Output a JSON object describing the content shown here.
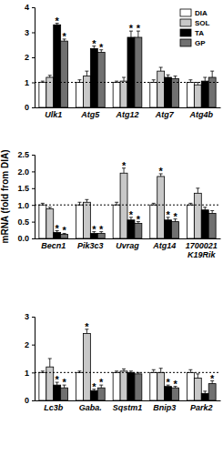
{
  "chart_data": [
    {
      "type": "bar",
      "categories": [
        "Ulk1",
        "Atg5",
        "Atg12",
        "Atg7",
        "Atg4b"
      ],
      "series": [
        {
          "name": "DIA",
          "color": "#ffffff",
          "values": [
            1,
            1,
            1,
            1,
            1
          ],
          "errors": [
            0.05,
            0.1,
            0.05,
            0.1,
            0.1
          ]
        },
        {
          "name": "SOL",
          "color": "#c8c8c8",
          "values": [
            1.2,
            1.25,
            1.05,
            1.45,
            0.9
          ],
          "errors": [
            0.08,
            0.2,
            0.15,
            0.15,
            0.1
          ]
        },
        {
          "name": "TA",
          "color": "#000000",
          "values": [
            3.3,
            2.35,
            2.8,
            1.2,
            1.05
          ],
          "errors": [
            0.06,
            0.1,
            0.25,
            0.1,
            0.15
          ]
        },
        {
          "name": "GP",
          "color": "#707070",
          "values": [
            2.65,
            2.2,
            2.8,
            1.15,
            1.2
          ],
          "errors": [
            0.08,
            0.1,
            0.25,
            0.1,
            0.25
          ]
        }
      ],
      "ylim": [
        0,
        4
      ],
      "yticks": [
        0,
        1,
        2,
        3,
        4
      ],
      "hline": 1,
      "legend": "top-right",
      "annotations": [
        {
          "text": "*",
          "category": 0,
          "series": 2
        },
        {
          "text": "*",
          "category": 0,
          "series": 3
        },
        {
          "text": "*",
          "category": 1,
          "series": 2
        },
        {
          "text": "*",
          "category": 1,
          "series": 3
        },
        {
          "text": "*",
          "category": 2,
          "series": 2
        },
        {
          "text": "*",
          "category": 2,
          "series": 3
        }
      ]
    },
    {
      "type": "bar",
      "y_label": "mRNA (fold from DIA)",
      "categories": [
        "Becn1",
        "Pik3c3",
        "Uvrag",
        "Atg14",
        "1700021\nK19Rik"
      ],
      "series": [
        {
          "color": "#ffffff",
          "values": [
            1,
            1,
            1,
            1,
            1
          ],
          "errors": [
            0.05,
            0.08,
            0.08,
            0.05,
            0.05
          ]
        },
        {
          "color": "#c8c8c8",
          "values": [
            0.88,
            1.08,
            1.95,
            1.85,
            1.35
          ],
          "errors": [
            0.05,
            0.08,
            0.15,
            0.08,
            0.15
          ]
        },
        {
          "color": "#000000",
          "values": [
            0.18,
            0.15,
            0.55,
            0.55,
            0.85
          ],
          "errors": [
            0.05,
            0.05,
            0.08,
            0.08,
            0.08
          ]
        },
        {
          "color": "#707070",
          "values": [
            0.12,
            0.15,
            0.45,
            0.5,
            0.75
          ],
          "errors": [
            0.03,
            0.05,
            0.05,
            0.08,
            0.08
          ]
        }
      ],
      "ylim": [
        0,
        2.5
      ],
      "yticks": [
        {
          "value": 0,
          "label": "0.0"
        },
        {
          "value": 0.5,
          "label": "0.5"
        },
        {
          "value": 1,
          "label": "1.0"
        },
        {
          "value": 1.5,
          "label": "1.5"
        },
        {
          "value": 2,
          "label": "2.0"
        },
        {
          "value": 2.5,
          "label": "2.5"
        }
      ],
      "hline": 1,
      "annotations": [
        {
          "text": "*",
          "category": 0,
          "series": 2
        },
        {
          "text": "*",
          "category": 0,
          "series": 3
        },
        {
          "text": "*",
          "category": 1,
          "series": 2
        },
        {
          "text": "*",
          "category": 1,
          "series": 3
        },
        {
          "text": "*",
          "category": 2,
          "series": 1
        },
        {
          "text": "*",
          "category": 2,
          "series": 2
        },
        {
          "text": "*",
          "category": 2,
          "series": 3
        },
        {
          "text": "*",
          "category": 3,
          "series": 1
        },
        {
          "text": "*",
          "category": 3,
          "series": 2
        },
        {
          "text": "*",
          "category": 3,
          "series": 3
        }
      ]
    },
    {
      "type": "bar",
      "categories": [
        "Lc3b",
        "Gaba.",
        "Sqstm1",
        "Bnip3",
        "Park2"
      ],
      "series": [
        {
          "color": "#ffffff",
          "values": [
            1,
            1,
            1,
            1,
            1
          ],
          "errors": [
            0.05,
            0.05,
            0.05,
            0.1,
            0.1
          ]
        },
        {
          "color": "#c8c8c8",
          "values": [
            1.2,
            2.4,
            1.05,
            1.0,
            0.8
          ],
          "errors": [
            0.3,
            0.15,
            0.08,
            0.15,
            0.15
          ]
        },
        {
          "color": "#000000",
          "values": [
            0.55,
            0.35,
            1.0,
            0.5,
            0.25
          ],
          "errors": [
            0.1,
            0.05,
            0.05,
            0.05,
            0.08
          ]
        },
        {
          "color": "#707070",
          "values": [
            0.45,
            0.45,
            0.95,
            0.45,
            0.6
          ],
          "errors": [
            0.1,
            0.1,
            0.05,
            0.05,
            0.1
          ]
        }
      ],
      "ylim": [
        0,
        3
      ],
      "yticks": [
        0,
        1,
        2,
        3
      ],
      "hline": 1,
      "annotations": [
        {
          "text": "*",
          "category": 0,
          "series": 2
        },
        {
          "text": "*",
          "category": 0,
          "series": 3
        },
        {
          "text": "*",
          "category": 1,
          "series": 1
        },
        {
          "text": "*",
          "category": 1,
          "series": 2
        },
        {
          "text": "*",
          "category": 1,
          "series": 3
        },
        {
          "text": "*",
          "category": 3,
          "series": 2
        },
        {
          "text": "*",
          "category": 3,
          "series": 3
        },
        {
          "text": "*",
          "category": 4,
          "series": 3
        }
      ]
    }
  ]
}
